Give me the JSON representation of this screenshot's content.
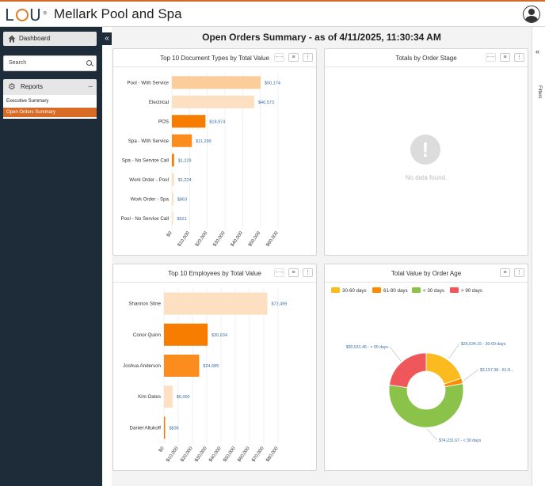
{
  "header": {
    "logo_text": "LOU",
    "title": "Mellark Pool and Spa",
    "user_icon": "user-circle-icon"
  },
  "sidebar": {
    "dashboard_label": "Dashboard",
    "search_placeholder": "Search",
    "reports_label": "Reports",
    "reports_items": [
      {
        "label": "Executive Summary",
        "active": false
      },
      {
        "label": "Open Orders Summary",
        "active": true
      }
    ]
  },
  "page": {
    "title": "Open Orders Summary - as of 4/11/2025, 11:30:34 AM",
    "filters_label": "Filters"
  },
  "panels": {
    "doc_types": {
      "title": "Top 10 Document Types by Total Value"
    },
    "order_stage": {
      "title": "Totals by Order Stage",
      "no_data": "No data found."
    },
    "employees": {
      "title": "Top 10 Employees by Total Value"
    },
    "order_age": {
      "title": "Total Value by Order Age"
    }
  },
  "colors": {
    "accent": "#d86b26",
    "bar_peach": "#fbcd9b",
    "bar_light": "#fde0c2",
    "bar_orange": "#fb8c1e",
    "bar_dark_orange": "#f77d00",
    "pie_yellow": "#fbbb1e",
    "pie_orange": "#fb8c00",
    "pie_green": "#8bc34a",
    "pie_red": "#f0575b"
  },
  "chart_data": [
    {
      "type": "bar",
      "orientation": "horizontal",
      "title": "Top 10 Document Types by Total Value",
      "categories": [
        "Pool - With Service",
        "Electrical",
        "POS",
        "Spa - With Service",
        "Spa - No Service Call",
        "Work Order - Pool",
        "Work Order - Spa",
        "Pool - No Service Call"
      ],
      "values": [
        50174,
        46573,
        18974,
        11299,
        1229,
        1224,
        863,
        521
      ],
      "value_labels": [
        "$50,174",
        "$46,573",
        "$18,974",
        "$11,299",
        "$1,229",
        "$1,224",
        "$863",
        "$521"
      ],
      "ticks": [
        "$0",
        "$10,000",
        "$20,000",
        "$30,000",
        "$40,000",
        "$50,000",
        "$60,000"
      ],
      "xlim": [
        0,
        60000
      ]
    },
    {
      "type": "bar",
      "orientation": "horizontal",
      "title": "Top 10 Employees by Total Value",
      "categories": [
        "Shannon Stine",
        "Conor Quinn",
        "Joshua Anderson",
        "Kim Oates",
        "Daniel Altukoff"
      ],
      "values": [
        72499,
        30634,
        24685,
        6000,
        836
      ],
      "value_labels": [
        "$72,499",
        "$30,634",
        "$24,685",
        "$6,000",
        "$836"
      ],
      "ticks": [
        "$0",
        "$10,000",
        "$20,000",
        "$30,000",
        "$40,000",
        "$50,000",
        "$60,000",
        "$70,000",
        "$80,000"
      ],
      "xlim": [
        0,
        80000
      ]
    },
    {
      "type": "pie",
      "variant": "donut",
      "title": "Total Value by Order Age",
      "legend_position": "top",
      "slices": [
        {
          "name": "30-60 days",
          "value": 26634.15,
          "label": "$26,634.15 - 30-60 days"
        },
        {
          "name": "61-90 days",
          "value": 3157.38,
          "label": "$3,157.38 - 61-9..."
        },
        {
          "name": "< 30 days",
          "value": 74231.67,
          "label": "$74,231.67 - < 30 days"
        },
        {
          "name": "> 90 days",
          "value": 30631.46,
          "label": "$30,631.46 - > 90 days"
        }
      ]
    }
  ]
}
